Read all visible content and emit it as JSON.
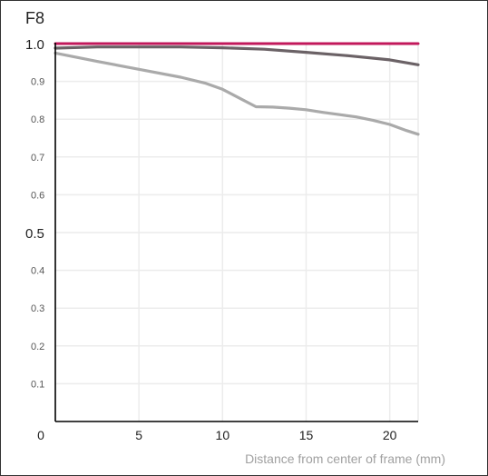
{
  "chart_data": {
    "type": "line",
    "title": "F8",
    "xlabel": "Distance from center of frame (mm)",
    "ylabel": "",
    "xlim": [
      0,
      21.7
    ],
    "ylim": [
      0,
      1.0
    ],
    "x_ticks": [
      {
        "value": 0,
        "label": "0"
      },
      {
        "value": 5,
        "label": "5"
      },
      {
        "value": 10,
        "label": "10"
      },
      {
        "value": 15,
        "label": "15"
      },
      {
        "value": 20,
        "label": "20"
      }
    ],
    "y_ticks": [
      {
        "value": 1.0,
        "label": "1.0",
        "major": true
      },
      {
        "value": 0.9,
        "label": "0.9",
        "major": false
      },
      {
        "value": 0.8,
        "label": "0.8",
        "major": false
      },
      {
        "value": 0.7,
        "label": "0.7",
        "major": false
      },
      {
        "value": 0.6,
        "label": "0.6",
        "major": false
      },
      {
        "value": 0.5,
        "label": "0.5",
        "major": true
      },
      {
        "value": 0.4,
        "label": "0.4",
        "major": false
      },
      {
        "value": 0.3,
        "label": "0.3",
        "major": false
      },
      {
        "value": 0.2,
        "label": "0.2",
        "major": false
      },
      {
        "value": 0.1,
        "label": "0.1",
        "major": false
      }
    ],
    "grid": true,
    "series": [
      {
        "color": "#c2185b",
        "x": [
          0,
          5,
          10,
          15,
          20,
          21.7
        ],
        "y": [
          1.0,
          1.0,
          1.0,
          1.0,
          1.0,
          1.0
        ]
      },
      {
        "color": "#6b6266",
        "x": [
          0,
          2.5,
          5,
          7.5,
          10,
          12.5,
          15,
          17.5,
          20,
          21.7
        ],
        "y": [
          0.988,
          0.991,
          0.991,
          0.991,
          0.989,
          0.985,
          0.977,
          0.968,
          0.957,
          0.944
        ]
      },
      {
        "color": "#aaaaaa",
        "x": [
          0,
          2.5,
          5,
          7.5,
          9,
          10,
          11,
          12,
          13,
          14,
          15,
          16,
          17,
          18,
          19,
          20,
          21,
          21.7
        ],
        "y": [
          0.975,
          0.953,
          0.932,
          0.911,
          0.895,
          0.879,
          0.856,
          0.833,
          0.832,
          0.829,
          0.825,
          0.818,
          0.812,
          0.806,
          0.797,
          0.786,
          0.77,
          0.76
        ]
      }
    ]
  }
}
